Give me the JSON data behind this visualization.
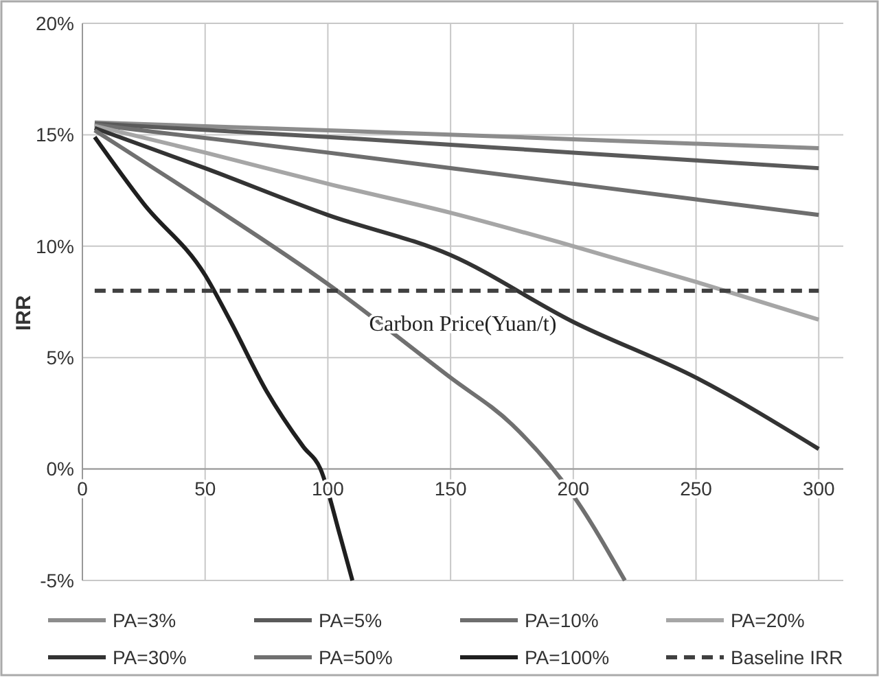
{
  "chart_data": {
    "type": "line",
    "xlabel": "Carbon Price(Yuan/t)",
    "ylabel": "IRR",
    "xlim": [
      0,
      310
    ],
    "ylim": [
      -5,
      20
    ],
    "xticks": [
      0,
      50,
      100,
      150,
      200,
      250,
      300
    ],
    "yticks": [
      {
        "value": -5,
        "label": "-5%"
      },
      {
        "value": 0,
        "label": "0%"
      },
      {
        "value": 5,
        "label": "5%"
      },
      {
        "value": 10,
        "label": "10%"
      },
      {
        "value": 15,
        "label": "15%"
      },
      {
        "value": 20,
        "label": "20%"
      }
    ],
    "grid": true,
    "legend": "bottom",
    "line_style": "solid",
    "series": [
      {
        "name": "PA=3%",
        "color": "#8c8c8c",
        "x": [
          5,
          100,
          200,
          300
        ],
        "values": [
          15.55,
          15.2,
          14.8,
          14.4
        ]
      },
      {
        "name": "PA=5%",
        "color": "#5a5a5a",
        "x": [
          5,
          100,
          200,
          300
        ],
        "values": [
          15.5,
          14.9,
          14.2,
          13.5
        ]
      },
      {
        "name": "PA=10%",
        "color": "#6e6e6e",
        "x": [
          5,
          100,
          200,
          300
        ],
        "values": [
          15.45,
          14.2,
          12.8,
          11.4
        ]
      },
      {
        "name": "PA=20%",
        "color": "#a6a6a6",
        "x": [
          5,
          50,
          100,
          150,
          200,
          250,
          300
        ],
        "values": [
          15.4,
          14.2,
          12.8,
          11.5,
          10.0,
          8.4,
          6.7
        ]
      },
      {
        "name": "PA=30%",
        "color": "#333333",
        "x": [
          5,
          50,
          100,
          150,
          200,
          250,
          300
        ],
        "values": [
          15.3,
          13.5,
          11.4,
          9.6,
          6.6,
          4.1,
          0.9
        ]
      },
      {
        "name": "PA=50%",
        "color": "#707070",
        "x": [
          5,
          50,
          100,
          150,
          175,
          200,
          221
        ],
        "values": [
          15.2,
          12.0,
          8.3,
          4.1,
          2.0,
          -1.2,
          -5
        ]
      },
      {
        "name": "PA=100%",
        "color": "#1f1f1f",
        "x": [
          5,
          25,
          50,
          60,
          75,
          90,
          97,
          105,
          110
        ],
        "values": [
          14.9,
          11.9,
          8.7,
          6.7,
          3.5,
          1.0,
          0,
          -3,
          -5
        ]
      },
      {
        "name": "Baseline IRR",
        "color": "#404040",
        "line_style": "dashed",
        "x": [
          5,
          300
        ],
        "values": [
          8,
          8
        ]
      }
    ]
  }
}
